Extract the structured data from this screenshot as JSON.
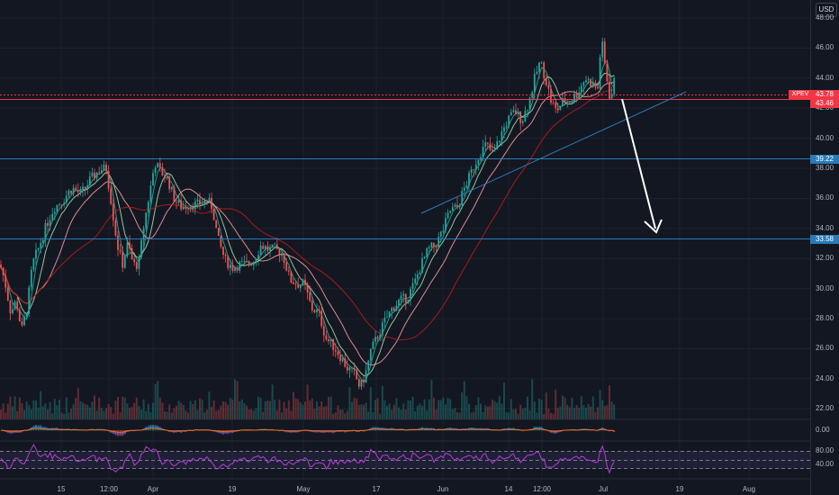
{
  "axis": {
    "currency": "USD",
    "price_ticks": [
      "48.00",
      "46.00",
      "44.00",
      "42.00",
      "40.00",
      "38.00",
      "36.00",
      "34.00",
      "32.00",
      "30.00",
      "28.00",
      "26.00",
      "24.00",
      "22.00"
    ],
    "macd_ticks": [
      "0.00"
    ],
    "rsi_ticks": [
      "80.00",
      "40.00"
    ],
    "time_ticks": [
      "15",
      "12:00",
      "Apr",
      "19",
      "May",
      "17",
      "Jun",
      "14",
      "12:00",
      "Jul",
      "19",
      "Aug"
    ]
  },
  "labels": {
    "symbol": "XPEV",
    "last_price": "43.78",
    "ref_price": "43.46",
    "level_upper": "39.22",
    "level_lower": "33.58"
  },
  "colors": {
    "background": "#131722",
    "up": "#26a69a",
    "down": "#ef5350",
    "level_line": "#2962ff",
    "label_blue": "#2a7ab7",
    "label_red": "#f23645",
    "rsi": "#b33fd6"
  },
  "chart_data": {
    "type": "candlestick",
    "symbol": "XPEV",
    "currency": "USD",
    "y_range": [
      21.3,
      49.2
    ],
    "x_labels": [
      "15",
      "12:00",
      "Apr",
      "19",
      "May",
      "17",
      "Jun",
      "14",
      "12:00",
      "Jul",
      "19",
      "Aug"
    ],
    "horizontal_levels": [
      39.22,
      33.58
    ],
    "last_price": 43.78,
    "reference_price": 43.46,
    "price_path": [
      [
        0,
        31.6
      ],
      [
        5,
        30.6
      ],
      [
        12,
        28.4
      ],
      [
        18,
        29.2
      ],
      [
        24,
        27.2
      ],
      [
        30,
        28.7
      ],
      [
        36,
        31.6
      ],
      [
        44,
        32.9
      ],
      [
        52,
        34.3
      ],
      [
        60,
        35.4
      ],
      [
        70,
        35.9
      ],
      [
        80,
        36.7
      ],
      [
        90,
        36.3
      ],
      [
        100,
        37.2
      ],
      [
        110,
        37.9
      ],
      [
        118,
        38.0
      ],
      [
        124,
        35.6
      ],
      [
        130,
        33.0
      ],
      [
        136,
        31.6
      ],
      [
        142,
        33.0
      ],
      [
        148,
        31.6
      ],
      [
        154,
        31.6
      ],
      [
        160,
        34.3
      ],
      [
        166,
        36.3
      ],
      [
        172,
        38.4
      ],
      [
        178,
        37.8
      ],
      [
        186,
        37.3
      ],
      [
        194,
        35.9
      ],
      [
        202,
        35.4
      ],
      [
        210,
        35.6
      ],
      [
        220,
        35.6
      ],
      [
        230,
        35.9
      ],
      [
        236,
        35.4
      ],
      [
        242,
        33.3
      ],
      [
        250,
        31.9
      ],
      [
        258,
        31.4
      ],
      [
        266,
        31.6
      ],
      [
        274,
        31.6
      ],
      [
        282,
        31.9
      ],
      [
        290,
        32.9
      ],
      [
        298,
        32.6
      ],
      [
        306,
        32.6
      ],
      [
        314,
        32.3
      ],
      [
        322,
        30.6
      ],
      [
        330,
        30.3
      ],
      [
        338,
        30.3
      ],
      [
        346,
        28.7
      ],
      [
        354,
        28.4
      ],
      [
        362,
        26.7
      ],
      [
        370,
        26.2
      ],
      [
        378,
        25.5
      ],
      [
        386,
        24.7
      ],
      [
        394,
        24.3
      ],
      [
        400,
        23.4
      ],
      [
        406,
        24.3
      ],
      [
        412,
        25.9
      ],
      [
        420,
        26.9
      ],
      [
        428,
        27.9
      ],
      [
        436,
        28.7
      ],
      [
        444,
        29.2
      ],
      [
        452,
        29.4
      ],
      [
        460,
        30.3
      ],
      [
        468,
        31.6
      ],
      [
        476,
        32.6
      ],
      [
        484,
        32.9
      ],
      [
        492,
        33.9
      ],
      [
        500,
        35.2
      ],
      [
        508,
        35.4
      ],
      [
        516,
        36.7
      ],
      [
        524,
        37.8
      ],
      [
        532,
        38.9
      ],
      [
        540,
        39.6
      ],
      [
        548,
        38.9
      ],
      [
        556,
        40.2
      ],
      [
        564,
        41.2
      ],
      [
        572,
        41.8
      ],
      [
        580,
        41.2
      ],
      [
        588,
        42.5
      ],
      [
        594,
        44.0
      ],
      [
        600,
        45.1
      ],
      [
        606,
        44.0
      ],
      [
        612,
        42.5
      ],
      [
        618,
        41.8
      ],
      [
        626,
        42.5
      ],
      [
        634,
        42.5
      ],
      [
        642,
        43.1
      ],
      [
        650,
        44.0
      ],
      [
        658,
        43.6
      ],
      [
        664,
        43.3
      ],
      [
        668,
        46.7
      ],
      [
        672,
        44.8
      ],
      [
        678,
        42.5
      ],
      [
        684,
        44.3
      ]
    ],
    "indicators": [
      "MA 10",
      "MA 20",
      "MA 50",
      "MA 100",
      "MACD",
      "RSI"
    ],
    "rsi_levels": [
      80,
      40
    ]
  }
}
